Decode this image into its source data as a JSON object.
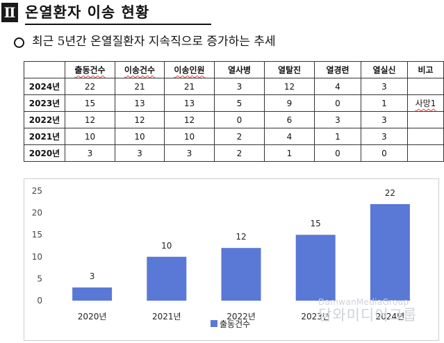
{
  "section": {
    "number": "Ⅱ",
    "title": "온열환자 이송 현황"
  },
  "bullet": {
    "icon": "hollow-circle-bullet-icon",
    "text": "최근 5년간 온열질환자 지속직으로 증가하는 추세"
  },
  "table": {
    "headers": [
      "",
      "출동건수",
      "이송건수",
      "이송인원",
      "열사병",
      "열탈진",
      "열경련",
      "열실신",
      "비고"
    ],
    "rows": [
      [
        "2024년",
        "22",
        "21",
        "21",
        "3",
        "12",
        "4",
        "3",
        ""
      ],
      [
        "2023년",
        "15",
        "13",
        "13",
        "5",
        "9",
        "0",
        "1",
        "사망1"
      ],
      [
        "2022년",
        "12",
        "12",
        "12",
        "0",
        "6",
        "3",
        "3",
        ""
      ],
      [
        "2021년",
        "10",
        "10",
        "10",
        "2",
        "4",
        "1",
        "3",
        ""
      ],
      [
        "2020년",
        "3",
        "3",
        "3",
        "2",
        "1",
        "0",
        "0",
        ""
      ]
    ]
  },
  "chart_data": {
    "type": "bar",
    "categories": [
      "2020년",
      "2021년",
      "2022년",
      "2023년",
      "2024년"
    ],
    "series": [
      {
        "name": "출동건수",
        "values": [
          3,
          10,
          12,
          15,
          22
        ],
        "color": "#5a78d6"
      }
    ],
    "ylim": [
      0,
      25
    ],
    "yticks": [
      0,
      5,
      10,
      15,
      20,
      25
    ],
    "grid": false,
    "legend": "bottom",
    "data_labels": true
  },
  "watermark": {
    "en": "DamwanMediaGroup",
    "ko": "담와미디어그룹"
  }
}
